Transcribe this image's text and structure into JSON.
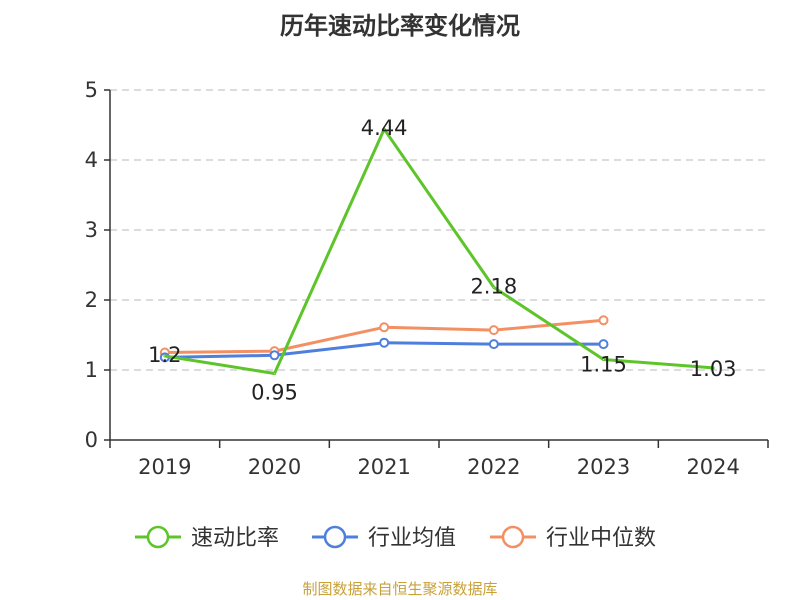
{
  "chart_data": {
    "type": "line",
    "title": "历年速动比率变化情况",
    "categories": [
      "2019",
      "2020",
      "2021",
      "2022",
      "2023",
      "2024"
    ],
    "ylim": [
      0,
      5
    ],
    "yticks": [
      0,
      1,
      2,
      3,
      4,
      5
    ],
    "grid": true,
    "legend_placement": "bottom",
    "series": [
      {
        "name": "速动比率",
        "color": "#5dc42a",
        "values": [
          1.2,
          0.95,
          4.44,
          2.18,
          1.15,
          1.03
        ],
        "labels": [
          "1.2",
          "0.95",
          "4.44",
          "2.18",
          "1.15",
          "1.03"
        ]
      },
      {
        "name": "行业均值",
        "color": "#4f7fdc",
        "values": [
          1.18,
          1.21,
          1.39,
          1.37,
          1.37,
          null
        ]
      },
      {
        "name": "行业中位数",
        "color": "#f39063",
        "values": [
          1.25,
          1.27,
          1.61,
          1.57,
          1.71,
          null
        ]
      }
    ]
  },
  "source_note": "制图数据来自恒生聚源数据库"
}
